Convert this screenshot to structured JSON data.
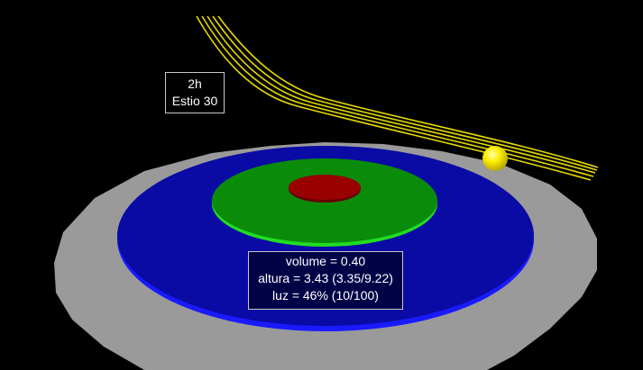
{
  "time_overlay": {
    "hour": "2h",
    "season_day": "Estio 30"
  },
  "info_overlay": {
    "volume_line": "volume = 0.40",
    "altura_line": "altura = 3.43 (3.35/9.22)",
    "luz_line": "luz = 46% (10/100)"
  },
  "scene": {
    "colors": {
      "background": "#000000",
      "outer_ring": "#9a9a9a",
      "blue_disc": "#0a0aa5",
      "blue_edge": "#1a1aff",
      "green_disc": "#0a8c0a",
      "green_edge": "#22dd22",
      "red_disc": "#990000",
      "sun": "#ffee00",
      "sun_trails": "#e6d800"
    }
  }
}
